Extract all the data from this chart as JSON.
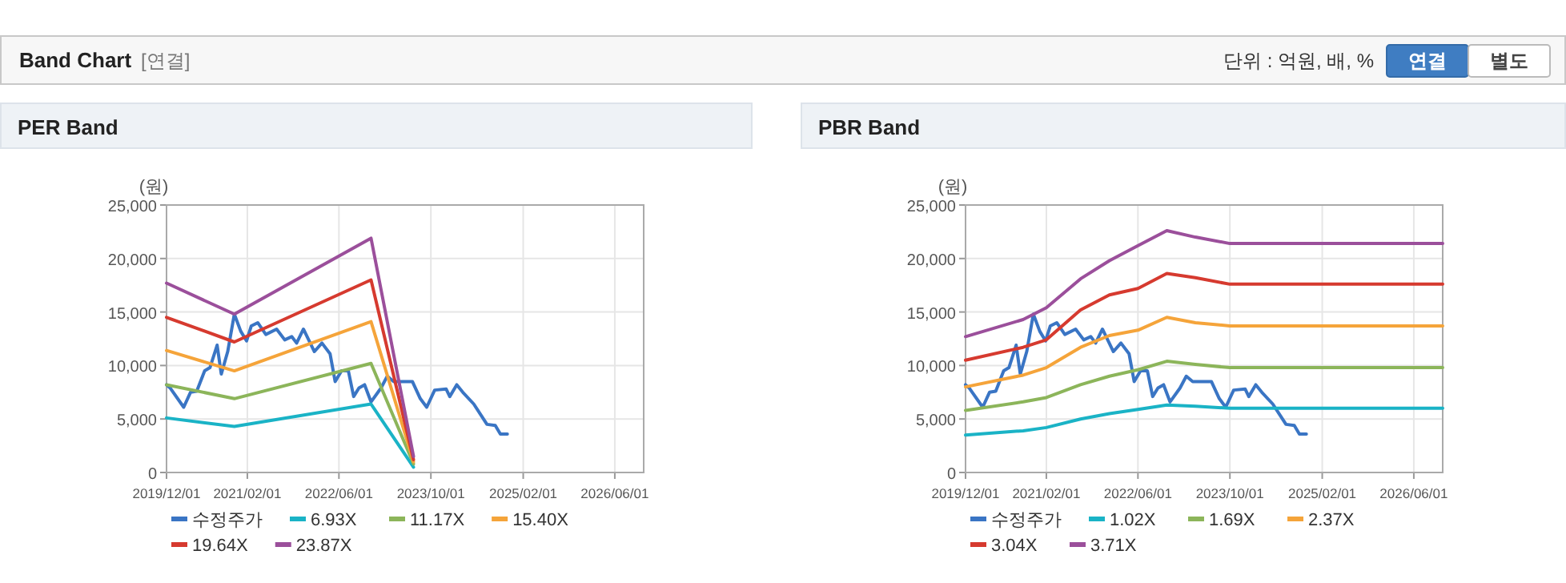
{
  "chart_data": [
    {
      "type": "other",
      "title": "Band Chart",
      "subtitle": "[연결]",
      "annotations": [
        "단위 : 억원, 배, %",
        "연결",
        "별도"
      ]
    },
    {
      "type": "line",
      "title": "PER Band",
      "ylabel": "(원)",
      "xlim": [
        "2019-12-01",
        "2026-11-01"
      ],
      "ylim": [
        0,
        25000
      ],
      "grid": true,
      "legend": "bottom",
      "xticks": [
        {
          "value": "2019-12-01",
          "label": "2019/12/01"
        },
        {
          "value": "2021-02-01",
          "label": "2021/02/01"
        },
        {
          "value": "2022-06-01",
          "label": "2022/06/01"
        },
        {
          "value": "2023-10-01",
          "label": "2023/10/01"
        },
        {
          "value": "2025-02-01",
          "label": "2025/02/01"
        },
        {
          "value": "2026-06-01",
          "label": "2026/06/01"
        }
      ],
      "yticks": [
        0,
        {
          "value": 5000,
          "label": "5,000"
        },
        {
          "value": 10000,
          "label": "10,000"
        },
        {
          "value": 15000,
          "label": "15,000"
        },
        {
          "value": 20000,
          "label": "20,000"
        },
        {
          "value": 25000,
          "label": "25,000"
        }
      ],
      "series": [
        {
          "name": "수정주가",
          "color": "#3a75c4",
          "x": [
            "2019-12-01",
            "2019-12-20",
            "2020-03-01",
            "2020-04-06",
            "2020-05-09",
            "2020-06-20",
            "2020-07-18",
            "2020-08-25",
            "2020-09-16",
            "2020-10-20",
            "2020-11-24",
            "2020-12-28",
            "2021-01-28",
            "2021-02-22",
            "2021-03-28",
            "2021-05-10",
            "2021-07-06",
            "2021-08-18",
            "2021-09-24",
            "2021-10-20",
            "2021-11-25",
            "2022-01-22",
            "2022-03-03",
            "2022-04-15",
            "2022-05-12",
            "2022-06-15",
            "2022-07-21",
            "2022-08-18",
            "2022-09-15",
            "2022-10-15",
            "2022-11-18",
            "2023-01-10",
            "2023-02-12",
            "2023-03-18",
            "2023-05-01",
            "2023-06-25",
            "2023-08-06",
            "2023-09-09",
            "2023-10-21",
            "2023-12-21",
            "2024-01-09",
            "2024-02-15",
            "2024-03-18",
            "2024-05-15",
            "2024-07-24",
            "2024-09-06",
            "2024-10-03",
            "2024-11-09"
          ],
          "values": [
            8200,
            7900,
            6100,
            7500,
            7600,
            9500,
            9800,
            11900,
            9200,
            11300,
            14800,
            13200,
            12300,
            13700,
            14000,
            12900,
            13400,
            12400,
            12700,
            12100,
            13400,
            11300,
            12100,
            11100,
            8500,
            9500,
            9500,
            7100,
            7900,
            8200,
            6600,
            7900,
            9000,
            8500,
            8500,
            8500,
            6900,
            6100,
            7700,
            7800,
            7100,
            8200,
            7500,
            6400,
            4500,
            4400,
            3600,
            3600
          ]
        },
        {
          "name": "6.93X",
          "color": "#1ab3c6",
          "x": [
            "2019-12-01",
            "2020-11-24",
            "2022-11-18",
            "2023-07-01"
          ],
          "values": [
            5100,
            4300,
            6400,
            500
          ]
        },
        {
          "name": "11.17X",
          "color": "#8cb55a",
          "x": [
            "2019-12-01",
            "2020-11-24",
            "2022-11-18",
            "2023-07-01"
          ],
          "values": [
            8200,
            6900,
            10200,
            800
          ]
        },
        {
          "name": "15.40X",
          "color": "#f5a43a",
          "x": [
            "2019-12-01",
            "2020-11-24",
            "2022-11-18",
            "2023-07-01"
          ],
          "values": [
            11400,
            9500,
            14100,
            1000
          ]
        },
        {
          "name": "19.64X",
          "color": "#d63a2f",
          "x": [
            "2019-12-01",
            "2020-11-24",
            "2022-11-18",
            "2023-07-01"
          ],
          "values": [
            14500,
            12200,
            18000,
            1200
          ]
        },
        {
          "name": "23.87X",
          "color": "#9b4f9b",
          "x": [
            "2019-12-01",
            "2020-11-24",
            "2022-11-18",
            "2023-07-01"
          ],
          "values": [
            17700,
            14800,
            21900,
            1500
          ]
        }
      ]
    },
    {
      "type": "line",
      "title": "PBR Band",
      "ylabel": "(원)",
      "xlim": [
        "2019-12-01",
        "2026-11-01"
      ],
      "ylim": [
        0,
        25000
      ],
      "grid": true,
      "legend": "bottom",
      "xticks": [
        {
          "value": "2019-12-01",
          "label": "2019/12/01"
        },
        {
          "value": "2021-02-01",
          "label": "2021/02/01"
        },
        {
          "value": "2022-06-01",
          "label": "2022/06/01"
        },
        {
          "value": "2023-10-01",
          "label": "2023/10/01"
        },
        {
          "value": "2025-02-01",
          "label": "2025/02/01"
        },
        {
          "value": "2026-06-01",
          "label": "2026/06/01"
        }
      ],
      "yticks": [
        0,
        {
          "value": 5000,
          "label": "5,000"
        },
        {
          "value": 10000,
          "label": "10,000"
        },
        {
          "value": 15000,
          "label": "15,000"
        },
        {
          "value": 20000,
          "label": "20,000"
        },
        {
          "value": 25000,
          "label": "25,000"
        }
      ],
      "series": [
        {
          "name": "수정주가",
          "color": "#3a75c4",
          "x": [
            "2019-12-01",
            "2019-12-20",
            "2020-03-01",
            "2020-04-06",
            "2020-05-09",
            "2020-06-20",
            "2020-07-18",
            "2020-08-25",
            "2020-09-16",
            "2020-10-20",
            "2020-11-24",
            "2020-12-28",
            "2021-01-28",
            "2021-02-22",
            "2021-03-28",
            "2021-05-10",
            "2021-07-06",
            "2021-08-18",
            "2021-09-24",
            "2021-10-20",
            "2021-11-25",
            "2022-01-22",
            "2022-03-03",
            "2022-04-15",
            "2022-05-12",
            "2022-06-15",
            "2022-07-21",
            "2022-08-18",
            "2022-09-15",
            "2022-10-15",
            "2022-11-18",
            "2023-01-10",
            "2023-02-12",
            "2023-03-18",
            "2023-05-01",
            "2023-06-25",
            "2023-08-06",
            "2023-09-09",
            "2023-10-21",
            "2023-12-21",
            "2024-01-09",
            "2024-02-15",
            "2024-03-18",
            "2024-05-15",
            "2024-07-24",
            "2024-09-06",
            "2024-10-03",
            "2024-11-09"
          ],
          "values": [
            8200,
            7900,
            6100,
            7500,
            7600,
            9500,
            9800,
            11900,
            9200,
            11300,
            14800,
            13200,
            12300,
            13700,
            14000,
            12900,
            13400,
            12400,
            12700,
            12100,
            13400,
            11300,
            12100,
            11100,
            8500,
            9500,
            9500,
            7100,
            7900,
            8200,
            6600,
            7900,
            9000,
            8500,
            8500,
            8500,
            6900,
            6100,
            7700,
            7800,
            7100,
            8200,
            7500,
            6400,
            4500,
            4400,
            3600,
            3600
          ]
        },
        {
          "name": "1.02X",
          "color": "#1ab3c6",
          "x": [
            "2019-12-01",
            "2020-10-01",
            "2021-02-01",
            "2021-08-01",
            "2022-01-01",
            "2022-06-01",
            "2022-11-01",
            "2023-04-01",
            "2023-10-01",
            "2026-11-01"
          ],
          "values": [
            3500,
            3900,
            4200,
            5000,
            5500,
            5900,
            6300,
            6200,
            6000,
            6000
          ]
        },
        {
          "name": "1.69X",
          "color": "#8cb55a",
          "x": [
            "2019-12-01",
            "2020-10-01",
            "2021-02-01",
            "2021-08-01",
            "2022-01-01",
            "2022-06-01",
            "2022-11-01",
            "2023-04-01",
            "2023-10-01",
            "2026-11-01"
          ],
          "values": [
            5800,
            6600,
            7000,
            8200,
            9000,
            9600,
            10400,
            10100,
            9800,
            9800
          ]
        },
        {
          "name": "2.37X",
          "color": "#f5a43a",
          "x": [
            "2019-12-01",
            "2020-10-01",
            "2021-02-01",
            "2021-08-01",
            "2022-01-01",
            "2022-06-01",
            "2022-11-01",
            "2023-04-01",
            "2023-10-01",
            "2026-11-01"
          ],
          "values": [
            8000,
            9100,
            9800,
            11700,
            12800,
            13300,
            14500,
            14000,
            13700,
            13700
          ]
        },
        {
          "name": "3.04X",
          "color": "#d63a2f",
          "x": [
            "2019-12-01",
            "2020-10-01",
            "2021-02-01",
            "2021-08-01",
            "2022-01-01",
            "2022-06-01",
            "2022-11-01",
            "2023-04-01",
            "2023-10-01",
            "2026-11-01"
          ],
          "values": [
            10500,
            11700,
            12400,
            15200,
            16600,
            17200,
            18600,
            18200,
            17600,
            17600
          ]
        },
        {
          "name": "3.71X",
          "color": "#9b4f9b",
          "x": [
            "2019-12-01",
            "2020-10-01",
            "2021-02-01",
            "2021-08-01",
            "2022-01-01",
            "2022-06-01",
            "2022-11-01",
            "2023-04-01",
            "2023-10-01",
            "2026-11-01"
          ],
          "values": [
            12700,
            14300,
            15400,
            18100,
            19800,
            21200,
            22600,
            22000,
            21400,
            21400
          ]
        }
      ]
    }
  ]
}
